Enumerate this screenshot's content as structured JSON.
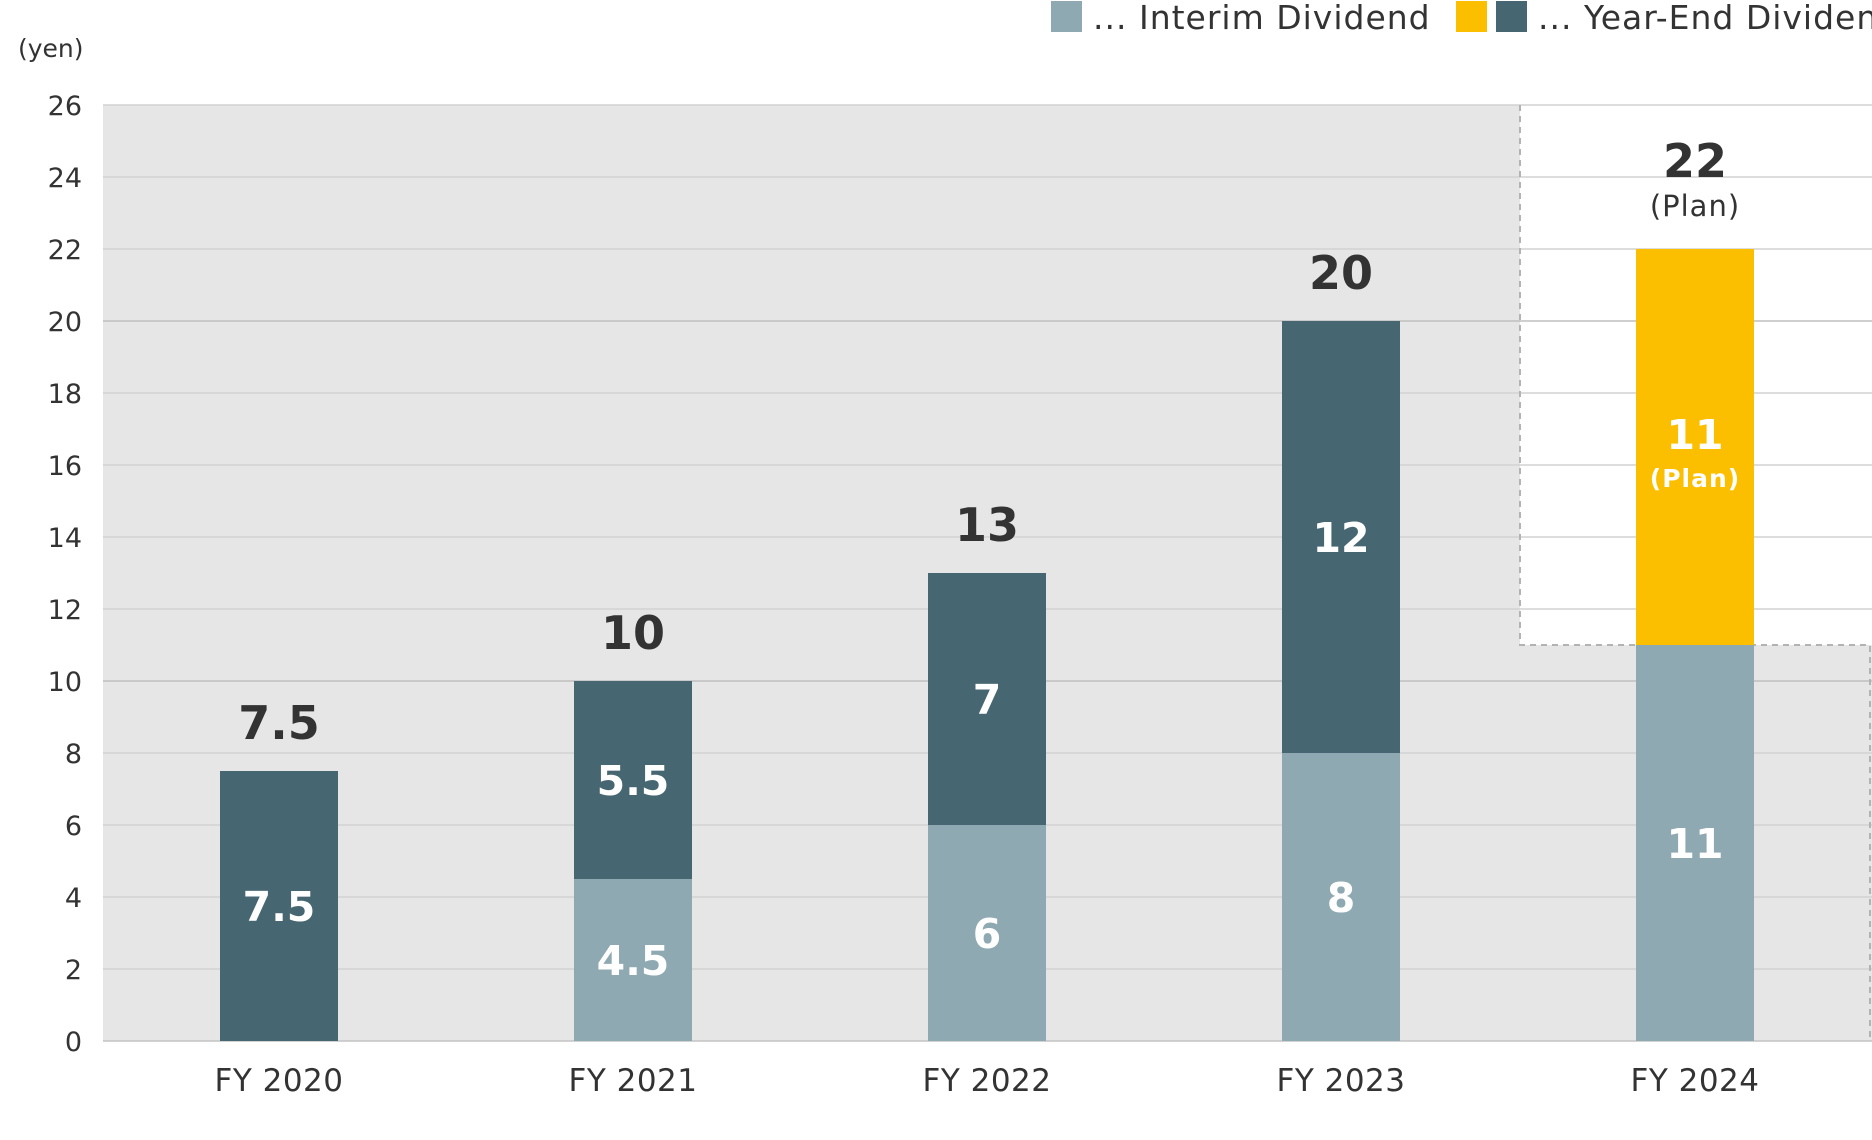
{
  "chart_data": {
    "type": "bar",
    "stacked": true,
    "unit": "(yen)",
    "categories": [
      "FY 2020",
      "FY 2021",
      "FY 2022",
      "FY 2023",
      "FY 2024"
    ],
    "series": [
      {
        "name": "... Interim Dividend",
        "values": [
          0,
          4.5,
          6,
          8,
          11
        ],
        "labels": [
          "",
          "4.5",
          "6",
          "8",
          "11"
        ],
        "color": "#8fa9b2"
      },
      {
        "name": "... Year-End Dividend",
        "values": [
          7.5,
          5.5,
          7,
          12,
          11
        ],
        "labels": [
          "7.5",
          "5.5",
          "7",
          "12",
          "11"
        ],
        "color": "#466672",
        "plan_color": "#fbbf00"
      }
    ],
    "totals": [
      "7.5",
      "10",
      "13",
      "20",
      "22"
    ],
    "plan_note": "(Plan)",
    "plan_category_index": 4,
    "ylim": [
      0,
      26
    ],
    "yticks": [
      "0",
      "2",
      "4",
      "6",
      "8",
      "10",
      "12",
      "14",
      "16",
      "18",
      "20",
      "22",
      "24",
      "26"
    ],
    "grid": true,
    "legend_position": "top-right",
    "colors": {
      "plot_background": "#e6e6e6",
      "grid": "#cccccc",
      "text": "#333333"
    }
  }
}
